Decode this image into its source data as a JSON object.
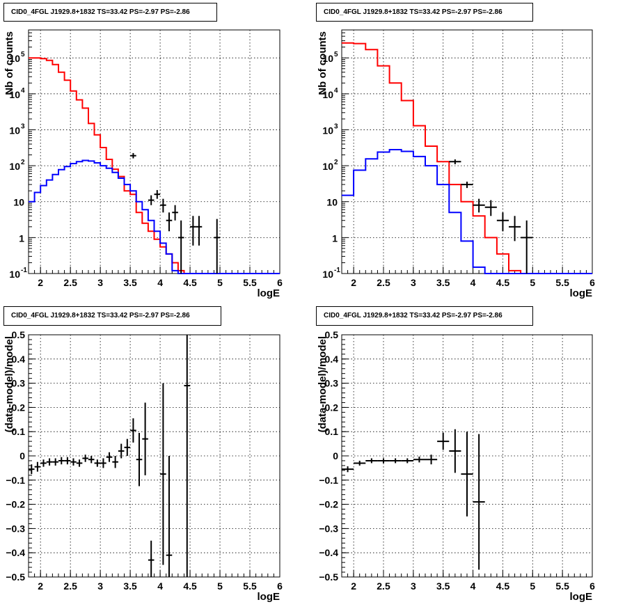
{
  "chart_data": [
    {
      "type": "line",
      "title": "CID0_4FGL J1929.8+1832 TS=33.42 PS=-2.97 PS=-2.86",
      "xlabel": "logE",
      "ylabel": "Nb of counts",
      "xlim": [
        1.8,
        6
      ],
      "ylim": [
        0.1,
        600000
      ],
      "yscale": "log",
      "grid": true,
      "xticks": [
        "2",
        "2.5",
        "3",
        "3.5",
        "4",
        "4.5",
        "5",
        "5.5",
        "6"
      ],
      "yticks": [
        {
          "v": 0.1,
          "base": "10",
          "exp": "-1"
        },
        {
          "v": 1,
          "label": "1"
        },
        {
          "v": 10,
          "label": "10"
        },
        {
          "v": 100,
          "base": "10",
          "exp": "2"
        },
        {
          "v": 1000,
          "base": "10",
          "exp": "3"
        },
        {
          "v": 10000,
          "base": "10",
          "exp": "4"
        },
        {
          "v": 100000,
          "base": "10",
          "exp": "5"
        }
      ],
      "bin_width": 0.1,
      "series": [
        {
          "color": "#ff0000",
          "x0": 1.8,
          "values": [
            100000,
            100000,
            95000,
            85000,
            65000,
            40000,
            24000,
            12000,
            6800,
            4000,
            1500,
            720,
            320,
            150,
            80,
            50,
            20,
            16,
            5,
            2.5,
            1.5,
            0.9,
            0.55,
            0.35,
            0.2,
            0.12,
            0.1,
            0.1,
            0.1,
            0.1,
            0.1,
            0.1,
            0.1,
            0.1,
            0.1,
            0.1,
            0.1,
            0.1,
            0.1,
            0.1,
            0.1,
            0.1
          ]
        },
        {
          "color": "#0000ff",
          "x0": 1.8,
          "values": [
            10,
            18,
            28,
            40,
            57,
            78,
            95,
            115,
            130,
            140,
            135,
            120,
            100,
            85,
            65,
            45,
            30,
            20,
            10,
            6,
            3,
            1.5,
            0.7,
            0.35,
            0.12,
            0.1,
            0.1,
            0.1,
            0.1,
            0.1,
            0.1,
            0.1,
            0.1,
            0.1,
            0.1,
            0.1,
            0.1,
            0.1,
            0.1,
            0.1,
            0.1,
            0.1
          ]
        }
      ],
      "points": [
        {
          "x": 3.55,
          "y": 190,
          "lo": 160,
          "hi": 225
        },
        {
          "x": 3.85,
          "y": 11,
          "lo": 8,
          "hi": 15
        },
        {
          "x": 3.95,
          "y": 16,
          "lo": 12,
          "hi": 21
        },
        {
          "x": 4.05,
          "y": 8,
          "lo": 5,
          "hi": 12
        },
        {
          "x": 4.15,
          "y": 3,
          "lo": 1.5,
          "hi": 5
        },
        {
          "x": 4.25,
          "y": 5,
          "lo": 3,
          "hi": 8
        },
        {
          "x": 4.35,
          "y": 1,
          "lo": 0.1,
          "hi": 3
        },
        {
          "x": 4.55,
          "y": 2,
          "lo": 0.6,
          "hi": 4
        },
        {
          "x": 4.65,
          "y": 2,
          "lo": 0.6,
          "hi": 4
        },
        {
          "x": 4.95,
          "y": 1,
          "lo": 0.1,
          "hi": 3.3
        }
      ]
    },
    {
      "type": "line",
      "title": "CID0_4FGL J1929.8+1832 TS=33.42 PS=-2.97 PS=-2.86",
      "xlabel": "logE",
      "ylabel": "Nb of counts",
      "xlim": [
        1.8,
        6
      ],
      "ylim": [
        0.1,
        600000
      ],
      "yscale": "log",
      "grid": true,
      "xticks": [
        "2",
        "2.5",
        "3",
        "3.5",
        "4",
        "4.5",
        "5",
        "5.5",
        "6"
      ],
      "yticks": [
        {
          "v": 0.1,
          "base": "10",
          "exp": "-1"
        },
        {
          "v": 1,
          "label": "1"
        },
        {
          "v": 10,
          "label": "10"
        },
        {
          "v": 100,
          "base": "10",
          "exp": "2"
        },
        {
          "v": 1000,
          "base": "10",
          "exp": "3"
        },
        {
          "v": 10000,
          "base": "10",
          "exp": "4"
        },
        {
          "v": 100000,
          "base": "10",
          "exp": "5"
        }
      ],
      "bin_width": 0.2,
      "series": [
        {
          "color": "#ff0000",
          "x0": 1.8,
          "values": [
            260000,
            250000,
            170000,
            60000,
            20000,
            6500,
            1300,
            350,
            130,
            30,
            10,
            4,
            1,
            0.35,
            0.12,
            0.1,
            0.1,
            0.1,
            0.1,
            0.1,
            0.1
          ]
        },
        {
          "color": "#0000ff",
          "x0": 1.8,
          "values": [
            15,
            75,
            155,
            240,
            280,
            250,
            180,
            100,
            30,
            5,
            0.8,
            0.15,
            0.1,
            0.1,
            0.1,
            0.1,
            0.1,
            0.1,
            0.1,
            0.1,
            0.1
          ]
        }
      ],
      "points": [
        {
          "x": 3.7,
          "y": 130,
          "lo": 110,
          "hi": 150
        },
        {
          "x": 3.9,
          "y": 30,
          "lo": 24,
          "hi": 36
        },
        {
          "x": 4.1,
          "y": 8,
          "lo": 5,
          "hi": 12
        },
        {
          "x": 4.3,
          "y": 7,
          "lo": 4,
          "hi": 11
        },
        {
          "x": 4.5,
          "y": 3,
          "lo": 1.5,
          "hi": 5
        },
        {
          "x": 4.7,
          "y": 2,
          "lo": 0.8,
          "hi": 4
        },
        {
          "x": 4.9,
          "y": 1,
          "lo": 0.1,
          "hi": 3
        }
      ]
    },
    {
      "type": "scatter",
      "title": "CID0_4FGL J1929.8+1832 TS=33.42 PS=-2.97 PS=-2.86",
      "xlabel": "logE",
      "ylabel": "(data-model)/model",
      "xlim": [
        1.8,
        6
      ],
      "ylim": [
        -0.5,
        0.5
      ],
      "yscale": "linear",
      "grid": true,
      "xticks": [
        "2",
        "2.5",
        "3",
        "3.5",
        "4",
        "4.5",
        "5",
        "5.5",
        "6"
      ],
      "yticks_linear": [
        "-0.5",
        "-0.4",
        "-0.3",
        "-0.2",
        "-0.1",
        "0",
        "0.1",
        "0.2",
        "0.3",
        "0.4",
        "0.5"
      ],
      "bin_width": 0.1,
      "points": [
        {
          "x": 1.85,
          "y": -0.055,
          "err": 0.02
        },
        {
          "x": 1.95,
          "y": -0.045,
          "err": 0.02
        },
        {
          "x": 2.05,
          "y": -0.03,
          "err": 0.015
        },
        {
          "x": 2.15,
          "y": -0.025,
          "err": 0.015
        },
        {
          "x": 2.25,
          "y": -0.025,
          "err": 0.015
        },
        {
          "x": 2.35,
          "y": -0.02,
          "err": 0.015
        },
        {
          "x": 2.45,
          "y": -0.02,
          "err": 0.015
        },
        {
          "x": 2.55,
          "y": -0.025,
          "err": 0.015
        },
        {
          "x": 2.65,
          "y": -0.03,
          "err": 0.015
        },
        {
          "x": 2.75,
          "y": -0.01,
          "err": 0.015
        },
        {
          "x": 2.85,
          "y": -0.015,
          "err": 0.015
        },
        {
          "x": 2.95,
          "y": -0.03,
          "err": 0.015
        },
        {
          "x": 3.05,
          "y": -0.03,
          "err": 0.02
        },
        {
          "x": 3.15,
          "y": -0.005,
          "err": 0.02
        },
        {
          "x": 3.25,
          "y": -0.025,
          "err": 0.025
        },
        {
          "x": 3.35,
          "y": 0.02,
          "err": 0.03
        },
        {
          "x": 3.45,
          "y": 0.035,
          "err": 0.035
        },
        {
          "x": 3.55,
          "y": 0.105,
          "err": 0.05
        },
        {
          "x": 3.65,
          "y": -0.015,
          "err": 0.11
        },
        {
          "x": 3.75,
          "y": 0.07,
          "err": 0.15
        },
        {
          "x": 3.85,
          "y": -0.43,
          "err": 0.08
        },
        {
          "x": 4.05,
          "y": -0.075,
          "err": 0.375
        },
        {
          "x": 4.15,
          "y": -0.41,
          "err": 0.41
        },
        {
          "x": 4.45,
          "y": 0.29,
          "err": 1.0
        }
      ]
    },
    {
      "type": "scatter",
      "title": "CID0_4FGL J1929.8+1832 TS=33.42 PS=-2.97 PS=-2.86",
      "xlabel": "logE",
      "ylabel": "(data-model)/model",
      "xlim": [
        1.8,
        6
      ],
      "ylim": [
        -0.5,
        0.5
      ],
      "yscale": "linear",
      "grid": true,
      "xticks": [
        "2",
        "2.5",
        "3",
        "3.5",
        "4",
        "4.5",
        "5",
        "5.5",
        "6"
      ],
      "yticks_linear": [
        "-0.5",
        "-0.4",
        "-0.3",
        "-0.2",
        "-0.1",
        "0",
        "0.1",
        "0.2",
        "0.3",
        "0.4",
        "0.5"
      ],
      "bin_width": 0.2,
      "points": [
        {
          "x": 1.9,
          "y": -0.055,
          "err": 0.012
        },
        {
          "x": 2.1,
          "y": -0.03,
          "err": 0.01
        },
        {
          "x": 2.3,
          "y": -0.02,
          "err": 0.01
        },
        {
          "x": 2.5,
          "y": -0.02,
          "err": 0.01
        },
        {
          "x": 2.7,
          "y": -0.02,
          "err": 0.01
        },
        {
          "x": 2.9,
          "y": -0.02,
          "err": 0.01
        },
        {
          "x": 3.1,
          "y": -0.015,
          "err": 0.012
        },
        {
          "x": 3.3,
          "y": -0.015,
          "err": 0.02
        },
        {
          "x": 3.5,
          "y": 0.06,
          "err": 0.035
        },
        {
          "x": 3.7,
          "y": 0.02,
          "err": 0.09
        },
        {
          "x": 3.9,
          "y": -0.075,
          "err": 0.175
        },
        {
          "x": 4.1,
          "y": -0.19,
          "err": 0.28
        }
      ]
    }
  ]
}
